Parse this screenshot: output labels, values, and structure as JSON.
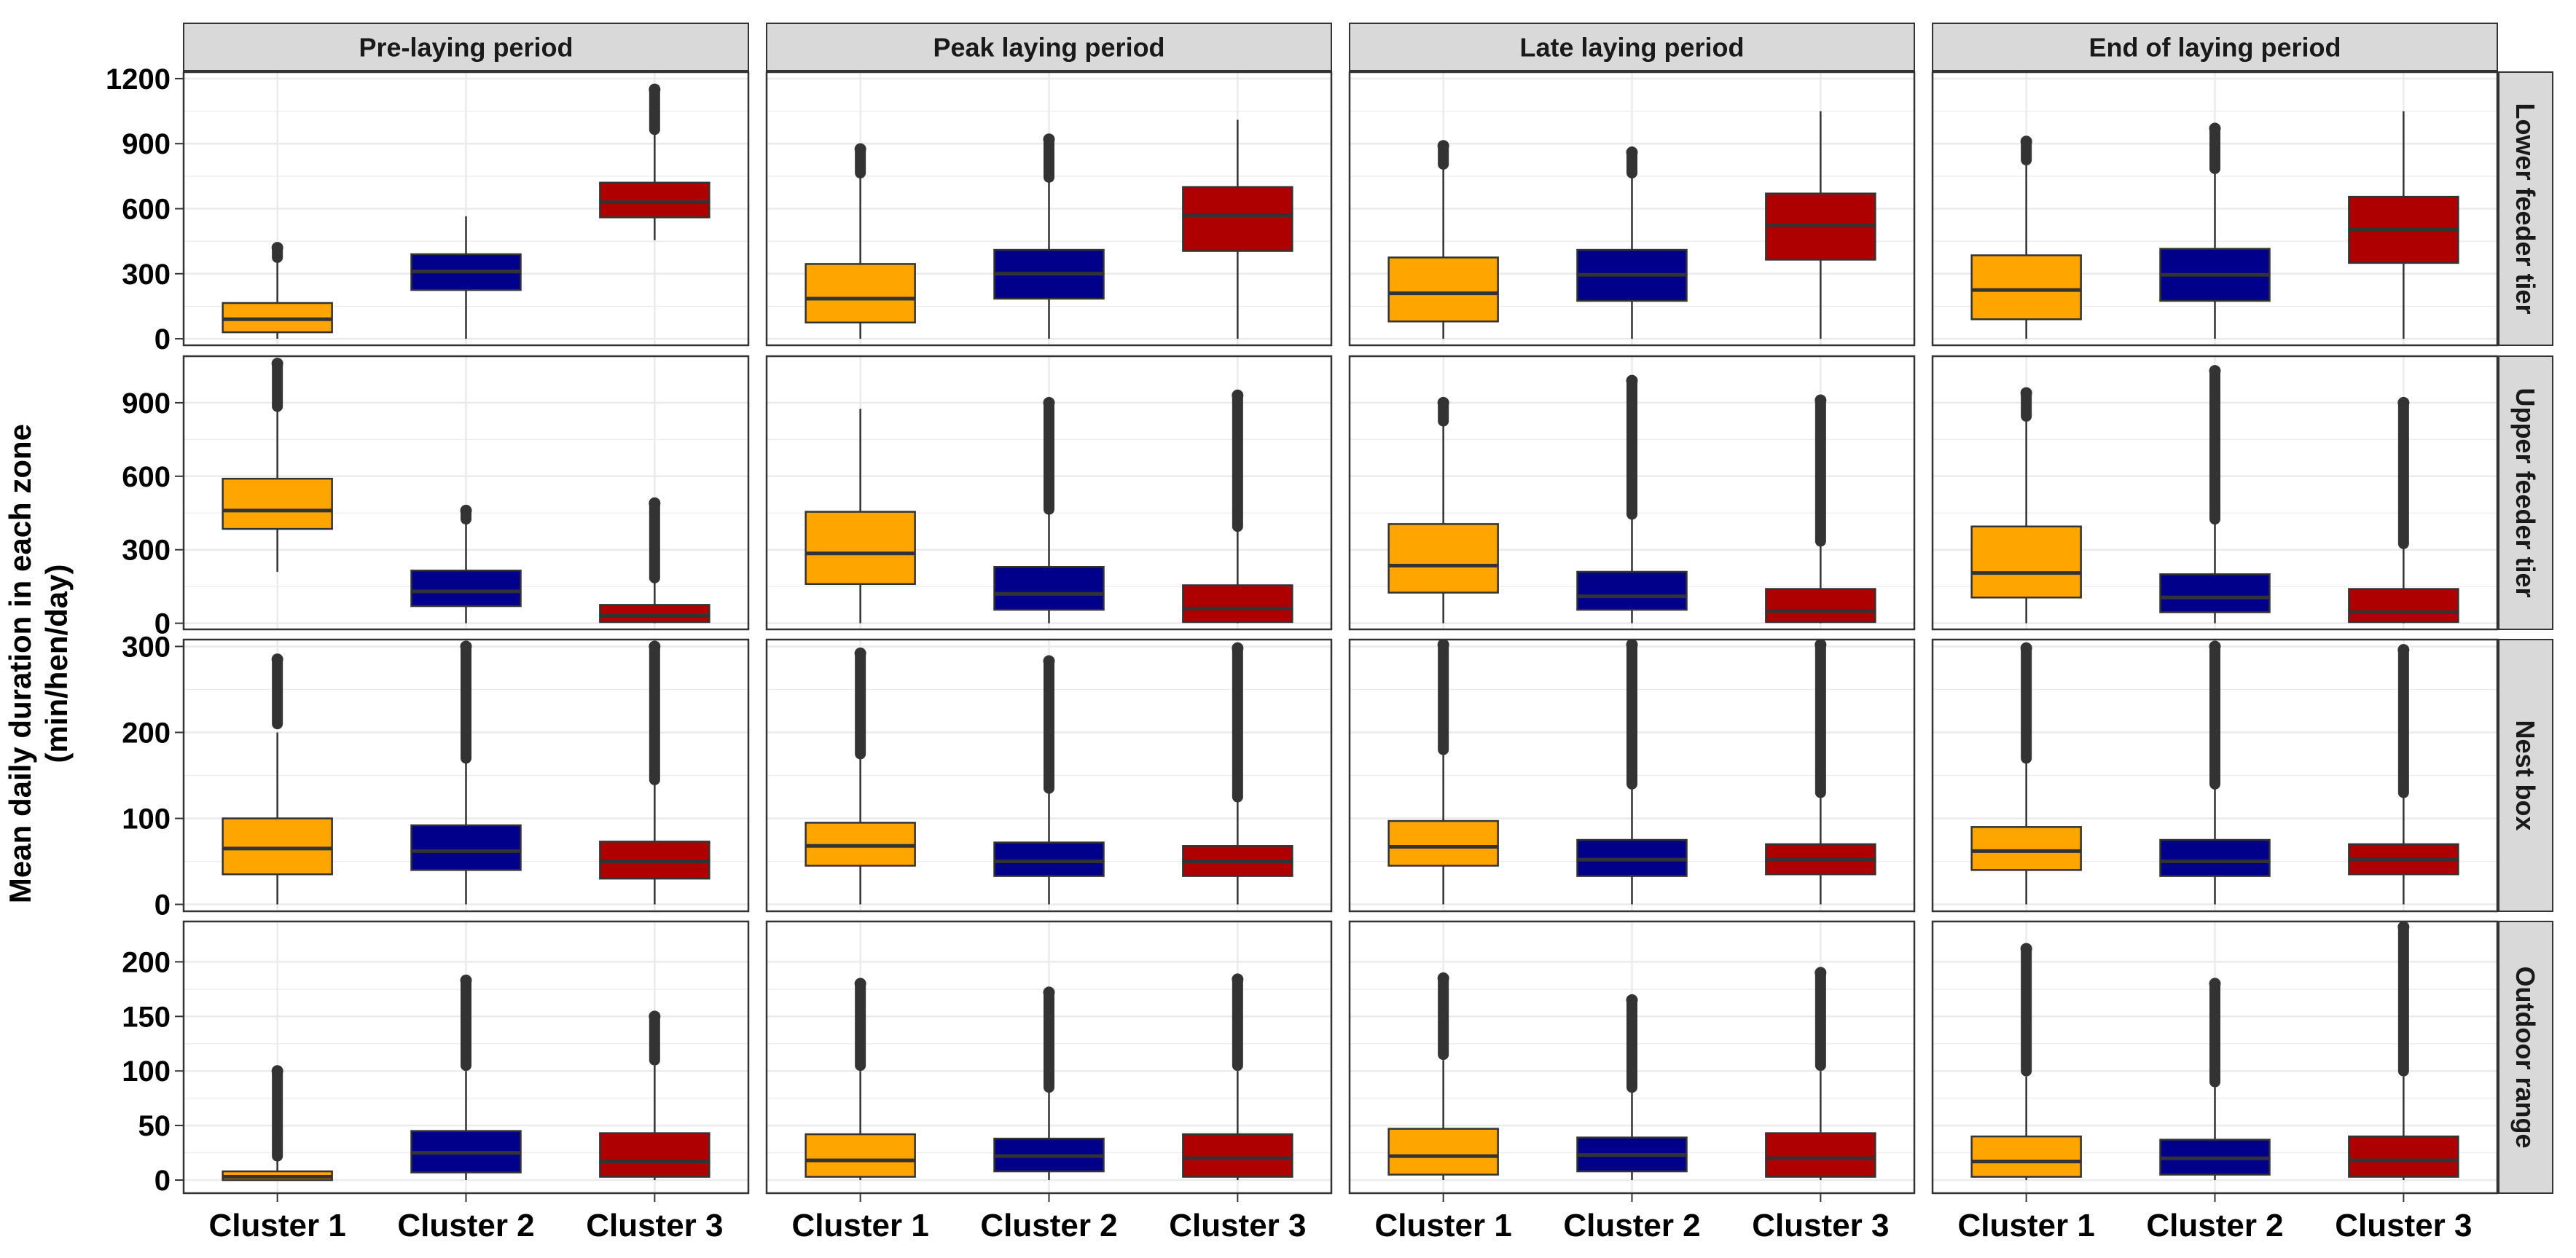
{
  "figure": {
    "ylabel_line1": "Mean daily duration in each zone",
    "ylabel_line2": "(min/hen/day)"
  },
  "colors": {
    "Cluster 1": "#FFA500",
    "Cluster 2": "#00008B",
    "Cluster 3": "#AE0000",
    "strip_bg": "#D9D9D9",
    "panel_border": "#333333",
    "grid": "#EBEBEB",
    "outlier": "#333333"
  },
  "chart_data": {
    "type": "boxplot",
    "facet_columns": [
      "Pre-laying period",
      "Peak laying period",
      "Late laying period",
      "End of laying period"
    ],
    "facet_rows": [
      "Lower feeder tier",
      "Upper feeder tier",
      "Nest box",
      "Outdoor range"
    ],
    "categories": [
      "Cluster 1",
      "Cluster 2",
      "Cluster 3"
    ],
    "ylabel": "Mean daily duration in each zone (min/hen/day)",
    "grid": true,
    "rows": [
      {
        "name": "Lower feeder tier",
        "ylim": [
          -30,
          1230
        ],
        "ticks": [
          0,
          300,
          600,
          900,
          1200
        ],
        "boxes": [
          [
            {
              "min": 0,
              "q1": 30,
              "median": 90,
              "q3": 165,
              "max": 370,
              "out_lo": 375,
              "out_hi": 420
            },
            {
              "min": 0,
              "q1": 225,
              "median": 310,
              "q3": 390,
              "max": 565,
              "out_lo": null,
              "out_hi": null
            },
            {
              "min": 455,
              "q1": 560,
              "median": 630,
              "q3": 720,
              "max": 960,
              "out_lo": 965,
              "out_hi": 1150
            }
          ],
          [
            {
              "min": 0,
              "q1": 75,
              "median": 185,
              "q3": 345,
              "max": 760,
              "out_lo": 765,
              "out_hi": 875
            },
            {
              "min": 0,
              "q1": 185,
              "median": 300,
              "q3": 410,
              "max": 740,
              "out_lo": 745,
              "out_hi": 920
            },
            {
              "min": 0,
              "q1": 405,
              "median": 570,
              "q3": 700,
              "max": 1010,
              "out_lo": null,
              "out_hi": null
            }
          ],
          [
            {
              "min": 0,
              "q1": 80,
              "median": 210,
              "q3": 375,
              "max": 800,
              "out_lo": 805,
              "out_hi": 890
            },
            {
              "min": 0,
              "q1": 175,
              "median": 295,
              "q3": 410,
              "max": 760,
              "out_lo": 765,
              "out_hi": 860
            },
            {
              "min": 0,
              "q1": 365,
              "median": 525,
              "q3": 670,
              "max": 1050,
              "out_lo": null,
              "out_hi": null
            }
          ],
          [
            {
              "min": 0,
              "q1": 90,
              "median": 225,
              "q3": 385,
              "max": 820,
              "out_lo": 825,
              "out_hi": 910
            },
            {
              "min": 0,
              "q1": 175,
              "median": 295,
              "q3": 415,
              "max": 780,
              "out_lo": 785,
              "out_hi": 970
            },
            {
              "min": 0,
              "q1": 350,
              "median": 505,
              "q3": 655,
              "max": 1050,
              "out_lo": null,
              "out_hi": null
            }
          ]
        ]
      },
      {
        "name": "Upper feeder tier",
        "ylim": [
          -25,
          1090
        ],
        "ticks": [
          0,
          300,
          600,
          900
        ],
        "boxes": [
          [
            {
              "min": 210,
              "q1": 385,
              "median": 460,
              "q3": 590,
              "max": 880,
              "out_lo": 885,
              "out_hi": 1060
            },
            {
              "min": 0,
              "q1": 70,
              "median": 130,
              "q3": 215,
              "max": 420,
              "out_lo": 425,
              "out_hi": 460
            },
            {
              "min": 0,
              "q1": 5,
              "median": 30,
              "q3": 75,
              "max": 180,
              "out_lo": 185,
              "out_hi": 490
            }
          ],
          [
            {
              "min": 0,
              "q1": 160,
              "median": 285,
              "q3": 455,
              "max": 875,
              "out_lo": null,
              "out_hi": null
            },
            {
              "min": 0,
              "q1": 55,
              "median": 120,
              "q3": 230,
              "max": 460,
              "out_lo": 465,
              "out_hi": 900
            },
            {
              "min": 0,
              "q1": 5,
              "median": 60,
              "q3": 155,
              "max": 390,
              "out_lo": 395,
              "out_hi": 930
            }
          ],
          [
            {
              "min": 0,
              "q1": 125,
              "median": 235,
              "q3": 405,
              "max": 820,
              "out_lo": 825,
              "out_hi": 900
            },
            {
              "min": 0,
              "q1": 55,
              "median": 110,
              "q3": 210,
              "max": 440,
              "out_lo": 445,
              "out_hi": 990
            },
            {
              "min": 0,
              "q1": 5,
              "median": 50,
              "q3": 140,
              "max": 330,
              "out_lo": 335,
              "out_hi": 910
            }
          ],
          [
            {
              "min": 0,
              "q1": 105,
              "median": 205,
              "q3": 395,
              "max": 840,
              "out_lo": 845,
              "out_hi": 940
            },
            {
              "min": 0,
              "q1": 45,
              "median": 105,
              "q3": 200,
              "max": 420,
              "out_lo": 425,
              "out_hi": 1030
            },
            {
              "min": 0,
              "q1": 5,
              "median": 45,
              "q3": 140,
              "max": 320,
              "out_lo": 325,
              "out_hi": 900
            }
          ]
        ]
      },
      {
        "name": "Nest box",
        "ylim": [
          -8,
          308
        ],
        "ticks": [
          0,
          100,
          200,
          300
        ],
        "boxes": [
          [
            {
              "min": 0,
              "q1": 35,
              "median": 65,
              "q3": 100,
              "max": 200,
              "out_lo": 210,
              "out_hi": 285
            },
            {
              "min": 0,
              "q1": 40,
              "median": 62,
              "q3": 92,
              "max": 165,
              "out_lo": 170,
              "out_hi": 300
            },
            {
              "min": 0,
              "q1": 30,
              "median": 50,
              "q3": 73,
              "max": 140,
              "out_lo": 145,
              "out_hi": 300
            }
          ],
          [
            {
              "min": 0,
              "q1": 45,
              "median": 68,
              "q3": 95,
              "max": 170,
              "out_lo": 175,
              "out_hi": 292
            },
            {
              "min": 0,
              "q1": 33,
              "median": 50,
              "q3": 72,
              "max": 130,
              "out_lo": 135,
              "out_hi": 283
            },
            {
              "min": 0,
              "q1": 33,
              "median": 50,
              "q3": 68,
              "max": 120,
              "out_lo": 125,
              "out_hi": 298
            }
          ],
          [
            {
              "min": 0,
              "q1": 45,
              "median": 67,
              "q3": 97,
              "max": 175,
              "out_lo": 180,
              "out_hi": 302
            },
            {
              "min": 0,
              "q1": 33,
              "median": 52,
              "q3": 75,
              "max": 135,
              "out_lo": 140,
              "out_hi": 302
            },
            {
              "min": 0,
              "q1": 35,
              "median": 52,
              "q3": 70,
              "max": 125,
              "out_lo": 130,
              "out_hi": 302
            }
          ],
          [
            {
              "min": 0,
              "q1": 40,
              "median": 62,
              "q3": 90,
              "max": 165,
              "out_lo": 170,
              "out_hi": 298
            },
            {
              "min": 0,
              "q1": 33,
              "median": 50,
              "q3": 75,
              "max": 135,
              "out_lo": 140,
              "out_hi": 300
            },
            {
              "min": 0,
              "q1": 35,
              "median": 52,
              "q3": 70,
              "max": 125,
              "out_lo": 130,
              "out_hi": 296
            }
          ]
        ]
      },
      {
        "name": "Outdoor range",
        "ylim": [
          -12,
          237
        ],
        "ticks": [
          0,
          50,
          100,
          150,
          200
        ],
        "boxes": [
          [
            {
              "min": 0,
              "q1": 0,
              "median": 3,
              "q3": 8,
              "max": 20,
              "out_lo": 22,
              "out_hi": 100
            },
            {
              "min": 0,
              "q1": 7,
              "median": 25,
              "q3": 45,
              "max": 100,
              "out_lo": 105,
              "out_hi": 183
            },
            {
              "min": 0,
              "q1": 3,
              "median": 17,
              "q3": 43,
              "max": 105,
              "out_lo": 110,
              "out_hi": 150
            }
          ],
          [
            {
              "min": 0,
              "q1": 3,
              "median": 18,
              "q3": 42,
              "max": 100,
              "out_lo": 105,
              "out_hi": 180
            },
            {
              "min": 0,
              "q1": 8,
              "median": 22,
              "q3": 38,
              "max": 80,
              "out_lo": 85,
              "out_hi": 172
            },
            {
              "min": 0,
              "q1": 3,
              "median": 20,
              "q3": 42,
              "max": 100,
              "out_lo": 105,
              "out_hi": 184
            }
          ],
          [
            {
              "min": 0,
              "q1": 5,
              "median": 22,
              "q3": 47,
              "max": 110,
              "out_lo": 115,
              "out_hi": 185
            },
            {
              "min": 0,
              "q1": 8,
              "median": 23,
              "q3": 39,
              "max": 80,
              "out_lo": 85,
              "out_hi": 165
            },
            {
              "min": 0,
              "q1": 3,
              "median": 20,
              "q3": 43,
              "max": 100,
              "out_lo": 105,
              "out_hi": 190
            }
          ],
          [
            {
              "min": 0,
              "q1": 3,
              "median": 17,
              "q3": 40,
              "max": 95,
              "out_lo": 100,
              "out_hi": 212
            },
            {
              "min": 0,
              "q1": 5,
              "median": 20,
              "q3": 37,
              "max": 85,
              "out_lo": 90,
              "out_hi": 180
            },
            {
              "min": 0,
              "q1": 3,
              "median": 18,
              "q3": 40,
              "max": 95,
              "out_lo": 100,
              "out_hi": 232
            }
          ]
        ]
      }
    ]
  }
}
